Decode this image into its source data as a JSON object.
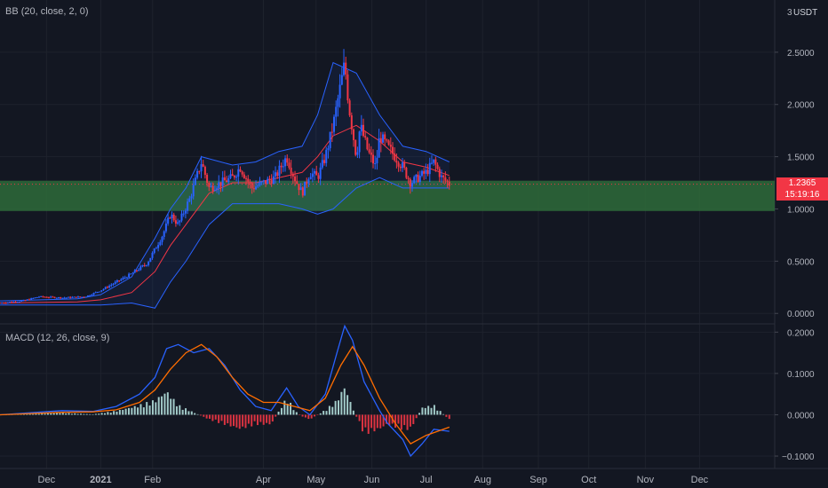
{
  "price_panel": {
    "indicator_label": "BB (20, close, 2, 0)",
    "currency": "USDT",
    "top_tick": "3",
    "ticks": [
      {
        "value": 2.5,
        "label": "2.5000"
      },
      {
        "value": 2.0,
        "label": "2.0000"
      },
      {
        "value": 1.5,
        "label": "1.5000"
      },
      {
        "value": 1.0,
        "label": "1.0000"
      },
      {
        "value": 0.5,
        "label": "0.5000"
      },
      {
        "value": 0.0,
        "label": "0.0000"
      }
    ],
    "last_price": "1.2365",
    "countdown": "15:19:16",
    "zone": {
      "from": 0.98,
      "to": 1.27,
      "color": "#2e6b3a"
    }
  },
  "macd_panel": {
    "indicator_label": "MACD (12, 26, close, 9)",
    "ticks": [
      {
        "value": 0.2,
        "label": "0.2000"
      },
      {
        "value": 0.1,
        "label": "0.1000"
      },
      {
        "value": 0.0,
        "label": "0.0000"
      },
      {
        "value": -0.1,
        "label": "−0.1000"
      }
    ]
  },
  "time_axis": {
    "labels": [
      {
        "t": 0.06,
        "label": "Dec",
        "bold": false
      },
      {
        "t": 0.13,
        "label": "2021",
        "bold": true
      },
      {
        "t": 0.197,
        "label": "Feb",
        "bold": false
      },
      {
        "t": 0.34,
        "label": "Apr",
        "bold": false
      },
      {
        "t": 0.408,
        "label": "May",
        "bold": false
      },
      {
        "t": 0.48,
        "label": "Jun",
        "bold": false
      },
      {
        "t": 0.55,
        "label": "Jul",
        "bold": false
      },
      {
        "t": 0.623,
        "label": "Aug",
        "bold": false
      },
      {
        "t": 0.695,
        "label": "Sep",
        "bold": false
      },
      {
        "t": 0.76,
        "label": "Oct",
        "bold": false
      },
      {
        "t": 0.833,
        "label": "Nov",
        "bold": false
      },
      {
        "t": 0.903,
        "label": "Dec",
        "bold": false
      }
    ]
  },
  "colors": {
    "background": "#131722",
    "up": "#2962ff",
    "down": "#f23645",
    "bb_basis": "#f23645",
    "bb_band": "#2962ff",
    "macd_line": "#2962ff",
    "signal_line": "#ff6d00",
    "hist_pos": "#b2dfdb",
    "hist_neg": "#f23645",
    "axis_text": "#b2b5be"
  },
  "chart_data": [
    {
      "type": "line",
      "title": "",
      "x_domain": [
        0,
        1
      ],
      "ylim": [
        -0.1,
        3.0
      ],
      "bollinger": {
        "basis": [
          [
            0,
            0.1
          ],
          [
            0.1,
            0.11
          ],
          [
            0.13,
            0.13
          ],
          [
            0.17,
            0.2
          ],
          [
            0.2,
            0.4
          ],
          [
            0.22,
            0.65
          ],
          [
            0.24,
            0.85
          ],
          [
            0.27,
            1.15
          ],
          [
            0.3,
            1.25
          ],
          [
            0.33,
            1.25
          ],
          [
            0.36,
            1.3
          ],
          [
            0.39,
            1.35
          ],
          [
            0.41,
            1.5
          ],
          [
            0.43,
            1.7
          ],
          [
            0.46,
            1.8
          ],
          [
            0.49,
            1.65
          ],
          [
            0.52,
            1.45
          ],
          [
            0.55,
            1.4
          ],
          [
            0.58,
            1.32
          ]
        ],
        "upper": [
          [
            0,
            0.12
          ],
          [
            0.1,
            0.14
          ],
          [
            0.13,
            0.18
          ],
          [
            0.17,
            0.35
          ],
          [
            0.2,
            0.72
          ],
          [
            0.22,
            1.0
          ],
          [
            0.24,
            1.2
          ],
          [
            0.26,
            1.5
          ],
          [
            0.3,
            1.42
          ],
          [
            0.33,
            1.45
          ],
          [
            0.36,
            1.55
          ],
          [
            0.39,
            1.6
          ],
          [
            0.41,
            1.9
          ],
          [
            0.43,
            2.4
          ],
          [
            0.46,
            2.3
          ],
          [
            0.49,
            1.9
          ],
          [
            0.52,
            1.6
          ],
          [
            0.55,
            1.55
          ],
          [
            0.58,
            1.45
          ]
        ],
        "lower": [
          [
            0,
            0.08
          ],
          [
            0.1,
            0.08
          ],
          [
            0.13,
            0.08
          ],
          [
            0.17,
            0.1
          ],
          [
            0.2,
            0.05
          ],
          [
            0.22,
            0.3
          ],
          [
            0.24,
            0.5
          ],
          [
            0.27,
            0.85
          ],
          [
            0.3,
            1.05
          ],
          [
            0.33,
            1.05
          ],
          [
            0.36,
            1.05
          ],
          [
            0.39,
            1.0
          ],
          [
            0.41,
            0.95
          ],
          [
            0.43,
            1.0
          ],
          [
            0.46,
            1.2
          ],
          [
            0.49,
            1.3
          ],
          [
            0.52,
            1.2
          ],
          [
            0.55,
            1.2
          ],
          [
            0.58,
            1.2
          ]
        ]
      },
      "price_path": [
        [
          0,
          0.1
        ],
        [
          0.03,
          0.12
        ],
        [
          0.05,
          0.16
        ],
        [
          0.08,
          0.15
        ],
        [
          0.11,
          0.16
        ],
        [
          0.13,
          0.22
        ],
        [
          0.15,
          0.3
        ],
        [
          0.17,
          0.38
        ],
        [
          0.19,
          0.48
        ],
        [
          0.21,
          0.75
        ],
        [
          0.22,
          0.95
        ],
        [
          0.23,
          0.85
        ],
        [
          0.245,
          1.1
        ],
        [
          0.26,
          1.45
        ],
        [
          0.27,
          1.2
        ],
        [
          0.285,
          1.25
        ],
        [
          0.3,
          1.3
        ],
        [
          0.31,
          1.4
        ],
        [
          0.325,
          1.2
        ],
        [
          0.34,
          1.25
        ],
        [
          0.355,
          1.3
        ],
        [
          0.37,
          1.5
        ],
        [
          0.38,
          1.3
        ],
        [
          0.39,
          1.15
        ],
        [
          0.4,
          1.35
        ],
        [
          0.41,
          1.3
        ],
        [
          0.42,
          1.5
        ],
        [
          0.43,
          1.8
        ],
        [
          0.44,
          2.2
        ],
        [
          0.445,
          2.4
        ],
        [
          0.45,
          2.0
        ],
        [
          0.46,
          1.5
        ],
        [
          0.465,
          1.8
        ],
        [
          0.475,
          1.55
        ],
        [
          0.485,
          1.4
        ],
        [
          0.49,
          1.7
        ],
        [
          0.5,
          1.6
        ],
        [
          0.51,
          1.5
        ],
        [
          0.52,
          1.4
        ],
        [
          0.53,
          1.25
        ],
        [
          0.54,
          1.3
        ],
        [
          0.55,
          1.35
        ],
        [
          0.56,
          1.45
        ],
        [
          0.57,
          1.3
        ],
        [
          0.58,
          1.24
        ]
      ]
    },
    {
      "type": "line",
      "title": "",
      "x_domain": [
        0,
        1
      ],
      "ylim": [
        -0.13,
        0.22
      ],
      "series": [
        {
          "key": "macd",
          "points": [
            [
              0,
              0.0
            ],
            [
              0.04,
              0.005
            ],
            [
              0.08,
              0.01
            ],
            [
              0.12,
              0.008
            ],
            [
              0.15,
              0.02
            ],
            [
              0.18,
              0.05
            ],
            [
              0.2,
              0.09
            ],
            [
              0.215,
              0.16
            ],
            [
              0.23,
              0.17
            ],
            [
              0.25,
              0.15
            ],
            [
              0.27,
              0.16
            ],
            [
              0.29,
              0.12
            ],
            [
              0.31,
              0.06
            ],
            [
              0.33,
              0.02
            ],
            [
              0.35,
              0.01
            ],
            [
              0.37,
              0.065
            ],
            [
              0.385,
              0.02
            ],
            [
              0.4,
              0.0
            ],
            [
              0.42,
              0.05
            ],
            [
              0.435,
              0.15
            ],
            [
              0.445,
              0.215
            ],
            [
              0.455,
              0.18
            ],
            [
              0.47,
              0.08
            ],
            [
              0.49,
              0.01
            ],
            [
              0.5,
              -0.02
            ],
            [
              0.52,
              -0.06
            ],
            [
              0.53,
              -0.1
            ],
            [
              0.545,
              -0.07
            ],
            [
              0.56,
              -0.035
            ],
            [
              0.58,
              -0.04
            ]
          ]
        },
        {
          "key": "signal",
          "points": [
            [
              0,
              0.0
            ],
            [
              0.04,
              0.003
            ],
            [
              0.08,
              0.006
            ],
            [
              0.12,
              0.007
            ],
            [
              0.15,
              0.012
            ],
            [
              0.18,
              0.03
            ],
            [
              0.2,
              0.06
            ],
            [
              0.22,
              0.11
            ],
            [
              0.24,
              0.15
            ],
            [
              0.26,
              0.17
            ],
            [
              0.28,
              0.14
            ],
            [
              0.3,
              0.09
            ],
            [
              0.32,
              0.05
            ],
            [
              0.34,
              0.03
            ],
            [
              0.36,
              0.03
            ],
            [
              0.38,
              0.02
            ],
            [
              0.4,
              0.01
            ],
            [
              0.42,
              0.04
            ],
            [
              0.44,
              0.12
            ],
            [
              0.455,
              0.165
            ],
            [
              0.47,
              0.12
            ],
            [
              0.49,
              0.04
            ],
            [
              0.51,
              -0.02
            ],
            [
              0.53,
              -0.07
            ],
            [
              0.55,
              -0.05
            ],
            [
              0.58,
              -0.03
            ]
          ]
        }
      ],
      "histogram": [
        [
          0,
          0.0
        ],
        [
          0.04,
          0.002
        ],
        [
          0.08,
          0.004
        ],
        [
          0.12,
          0.001
        ],
        [
          0.15,
          0.008
        ],
        [
          0.18,
          0.02
        ],
        [
          0.2,
          0.03
        ],
        [
          0.215,
          0.05
        ],
        [
          0.23,
          0.02
        ],
        [
          0.25,
          0.005
        ],
        [
          0.27,
          -0.01
        ],
        [
          0.29,
          -0.02
        ],
        [
          0.31,
          -0.03
        ],
        [
          0.33,
          -0.02
        ],
        [
          0.35,
          -0.02
        ],
        [
          0.37,
          0.035
        ],
        [
          0.385,
          0.0
        ],
        [
          0.4,
          -0.01
        ],
        [
          0.42,
          0.01
        ],
        [
          0.435,
          0.03
        ],
        [
          0.445,
          0.06
        ],
        [
          0.455,
          0.015
        ],
        [
          0.47,
          -0.04
        ],
        [
          0.49,
          -0.03
        ],
        [
          0.5,
          -0.02
        ],
        [
          0.52,
          -0.03
        ],
        [
          0.53,
          -0.03
        ],
        [
          0.545,
          0.015
        ],
        [
          0.56,
          0.02
        ],
        [
          0.58,
          -0.01
        ]
      ]
    }
  ]
}
